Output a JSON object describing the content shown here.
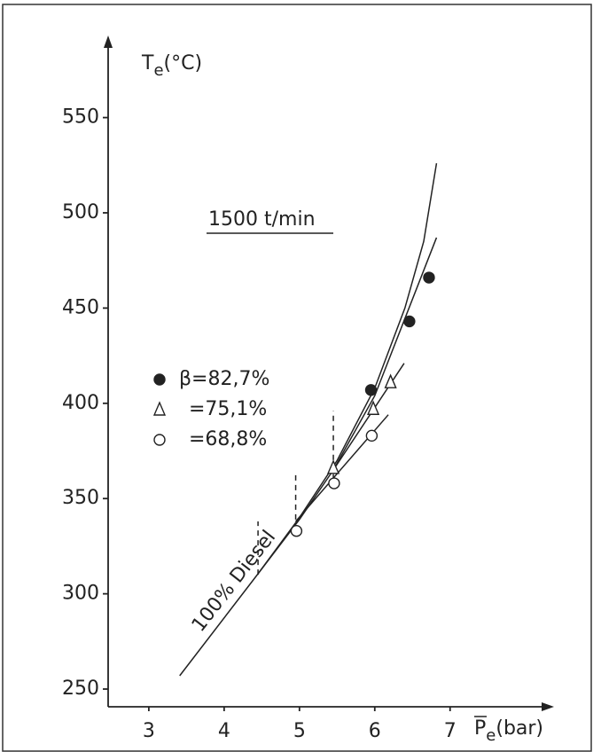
{
  "chart_data": {
    "type": "scatter",
    "y_label": {
      "main": "T",
      "sub": "e",
      "rest": "(°C)"
    },
    "x_label": {
      "main": "P",
      "sub": "e",
      "rest": "(bar)"
    },
    "annotations": [
      "1500 t/min",
      "100% Diesel"
    ],
    "xlim": [
      2.46,
      8.38
    ],
    "ylim": [
      240.7,
      593.1
    ],
    "xticks": [
      3,
      4,
      5,
      6,
      7
    ],
    "yticks": [
      250,
      300,
      350,
      400,
      450,
      500,
      550
    ],
    "series": [
      {
        "name": "β=82,7%",
        "marker": "filled-circle",
        "color": "#222",
        "x": [
          5.95,
          6.46,
          6.72
        ],
        "values": [
          407,
          443,
          466
        ]
      },
      {
        "name": "=75,1%",
        "marker": "triangle",
        "color": "#222",
        "x": [
          5.45,
          5.98,
          6.21
        ],
        "values": [
          366,
          397,
          411
        ]
      },
      {
        "name": "=68,8%",
        "marker": "circle",
        "color": "#222",
        "x": [
          4.96,
          5.46,
          5.96
        ],
        "values": [
          333,
          358,
          383
        ]
      }
    ],
    "lines": [
      {
        "x": [
          3.41,
          4.44
        ],
        "y": [
          257,
          310
        ]
      },
      {
        "x": [
          4.44,
          5.0,
          5.5,
          6.0,
          6.4,
          6.65,
          6.82
        ],
        "y": [
          310,
          340,
          370,
          408,
          450,
          485,
          526
        ]
      },
      {
        "x": [
          4.44,
          5.0,
          5.45,
          6.0,
          6.82
        ],
        "y": [
          310,
          339,
          365,
          404,
          487
        ]
      },
      {
        "x": [
          5.45,
          6.39
        ],
        "y": [
          365,
          421
        ]
      },
      {
        "x": [
          4.95,
          6.18
        ],
        "y": [
          338,
          394
        ]
      }
    ],
    "dashed": [
      {
        "x": 4.45,
        "y": [
          310,
          338
        ]
      },
      {
        "x": 4.95,
        "y": [
          339,
          363
        ]
      },
      {
        "x": 5.45,
        "y": [
          360,
          396
        ]
      }
    ]
  }
}
